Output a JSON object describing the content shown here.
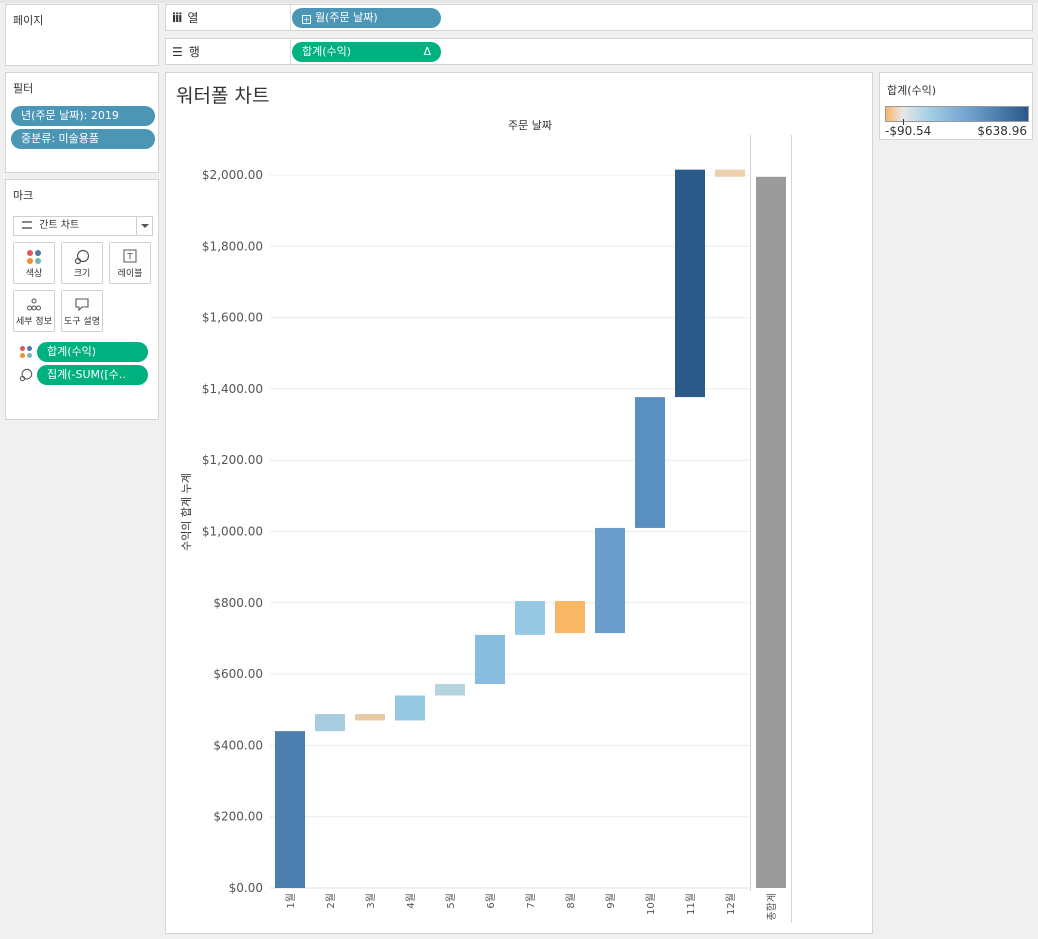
{
  "panels": {
    "pages_title": "페이지",
    "filters_title": "필터",
    "filters": [
      "년(주문 날짜): 2019",
      "중분류: 미술용품"
    ],
    "marks_title": "마크",
    "mark_type": "간트 차트",
    "mark_buttons": [
      "색상",
      "크기",
      "레이블",
      "세부 정보",
      "도구 설명"
    ],
    "mark_fields": [
      "합계(수익)",
      "집계(-SUM([수.."
    ]
  },
  "shelves": {
    "columns_label": "열",
    "columns_pill": "월(주문 날짜)",
    "rows_label": "행",
    "rows_pill": "합계(수익)",
    "rows_delta": "Δ"
  },
  "legend": {
    "title": "합계(수익)",
    "min_label": "-$90.54",
    "max_label": "$638.96",
    "colors": {
      "low": "#f9b46a",
      "mid": "#a5cfe6",
      "high": "#2a5989"
    }
  },
  "chart_title": "워터폴 차트",
  "chart_data": {
    "type": "bar",
    "subtype": "waterfall",
    "xlabel": "주문 날짜",
    "ylabel": "수익의 합계 누계",
    "ylim": [
      0,
      2100
    ],
    "y_ticks": [
      "$0.00",
      "$200.00",
      "$400.00",
      "$600.00",
      "$800.00",
      "$1,000.00",
      "$1,200.00",
      "$1,400.00",
      "$1,600.00",
      "$1,800.00",
      "$2,000.00"
    ],
    "y_tick_values": [
      0,
      200,
      400,
      600,
      800,
      1000,
      1200,
      1400,
      1600,
      1800,
      2000
    ],
    "categories": [
      "1월",
      "2월",
      "3월",
      "4월",
      "5월",
      "6월",
      "7월",
      "8월",
      "9월",
      "10월",
      "11월",
      "12월"
    ],
    "bars": [
      {
        "start": 0,
        "end": 440,
        "color": "#4a7faf"
      },
      {
        "start": 440,
        "end": 488,
        "color": "#a8cde0"
      },
      {
        "start": 488,
        "end": 470,
        "color": "#e8c9a6"
      },
      {
        "start": 470,
        "end": 540,
        "color": "#96c8e2"
      },
      {
        "start": 540,
        "end": 572,
        "color": "#b4d4df"
      },
      {
        "start": 572,
        "end": 710,
        "color": "#88bde0"
      },
      {
        "start": 710,
        "end": 805,
        "color": "#96c8e4"
      },
      {
        "start": 805,
        "end": 715,
        "color": "#f9b766"
      },
      {
        "start": 715,
        "end": 1010,
        "color": "#6a9ccc"
      },
      {
        "start": 1010,
        "end": 1377,
        "color": "#5a8fc2"
      },
      {
        "start": 1377,
        "end": 2015,
        "color": "#2a5a8a"
      },
      {
        "start": 2015,
        "end": 1995,
        "color": "#ebd0ab"
      }
    ],
    "total": {
      "label": "총합계",
      "value": 1995,
      "color": "#9b9b9b"
    }
  }
}
